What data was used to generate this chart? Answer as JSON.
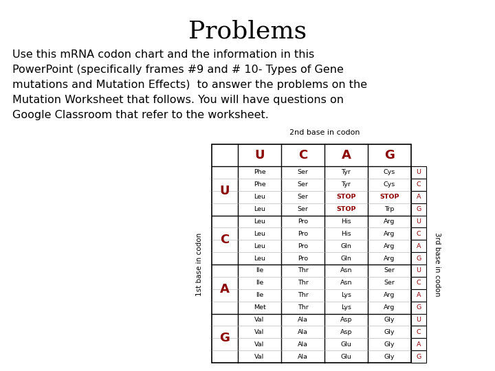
{
  "title": "Problems",
  "title_fontsize": 26,
  "body_lines": [
    "Use this mRNA codon chart and the information in this",
    "PowerPoint (specifically frames #9 and # 10- Types of Gene",
    "mutations and Mutation Effects)  to answer the problems on the",
    "Mutation Worksheet that follows. You will have questions on",
    "Google Classroom that refer to the worksheet."
  ],
  "body_fontsize": 11.5,
  "table_header_2nd": "2nd base in codon",
  "table_label_1st": "1st base in codon",
  "table_label_3rd": "3rd base in codon",
  "col_headers": [
    "U",
    "C",
    "A",
    "G"
  ],
  "row_headers": [
    "U",
    "C",
    "A",
    "G"
  ],
  "third_base_labels": [
    "U",
    "C",
    "A",
    "G",
    "U",
    "C",
    "A",
    "G",
    "U",
    "C",
    "A",
    "G",
    "U",
    "C",
    "A",
    "G"
  ],
  "cell_data": [
    [
      [
        "Phe",
        "Phe",
        "Leu",
        "Leu"
      ],
      [
        "Ser",
        "Ser",
        "Ser",
        "Ser"
      ],
      [
        "Tyr",
        "Tyr",
        "STOP",
        "STOP"
      ],
      [
        "Cys",
        "Cys",
        "STOP",
        "Trp"
      ]
    ],
    [
      [
        "Leu",
        "Leu",
        "Leu",
        "Leu"
      ],
      [
        "Pro",
        "Pro",
        "Pro",
        "Pro"
      ],
      [
        "His",
        "His",
        "Gln",
        "Gln"
      ],
      [
        "Arg",
        "Arg",
        "Arg",
        "Arg"
      ]
    ],
    [
      [
        "Ile",
        "Ile",
        "Ile",
        "Met"
      ],
      [
        "Thr",
        "Thr",
        "Thr",
        "Thr"
      ],
      [
        "Asn",
        "Asn",
        "Lys",
        "Lys"
      ],
      [
        "Ser",
        "Ser",
        "Arg",
        "Arg"
      ]
    ],
    [
      [
        "Val",
        "Val",
        "Val",
        "Val"
      ],
      [
        "Ala",
        "Ala",
        "Ala",
        "Ala"
      ],
      [
        "Asp",
        "Asp",
        "Glu",
        "Glu"
      ],
      [
        "Gly",
        "Gly",
        "Gly",
        "Gly"
      ]
    ]
  ],
  "stop_color": "#8B0000",
  "header_color": "#8B0000",
  "normal_color": "#000000",
  "bg_color": "#ffffff"
}
